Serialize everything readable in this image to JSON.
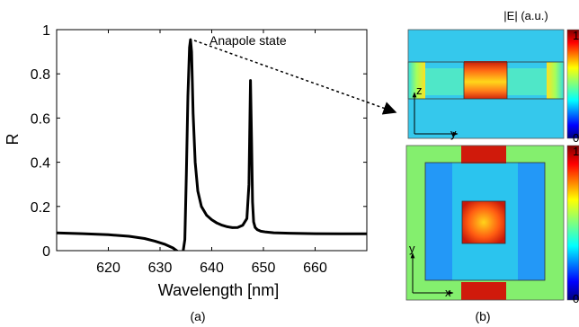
{
  "figure": {
    "panel_a_label": "(a)",
    "panel_b_label": "(b)"
  },
  "chart_data": {
    "type": "line",
    "xlabel": "Wavelength [nm]",
    "ylabel": "R",
    "xlim": [
      610,
      670
    ],
    "ylim": [
      0,
      1
    ],
    "xticks": [
      620,
      630,
      640,
      650,
      660
    ],
    "yticks": [
      0,
      0.2,
      0.4,
      0.6,
      0.8,
      1
    ],
    "ytick_labels": [
      "0",
      "0.2",
      "0.4",
      "0.6",
      "0.8",
      "1"
    ],
    "grid": false,
    "annotation": "Anapole state",
    "annotation_at": [
      635.9,
      0.955
    ],
    "series": [
      {
        "color": "#000000",
        "x": [
          610,
          615,
          620,
          624,
          627,
          629,
          631,
          632.5,
          633.5,
          634.3,
          634.8,
          635.1,
          635.4,
          635.7,
          635.9,
          636.1,
          636.4,
          636.8,
          637.3,
          638,
          639,
          640,
          641,
          642,
          643,
          644,
          645,
          646,
          646.8,
          647.2,
          647.5,
          647.7,
          647.9,
          648.1,
          648.4,
          648.8,
          649.5,
          650.5,
          652,
          655,
          660,
          665,
          670
        ],
        "y": [
          0.08,
          0.077,
          0.072,
          0.065,
          0.055,
          0.043,
          0.028,
          0.012,
          -0.005,
          -0.03,
          0.05,
          0.35,
          0.7,
          0.92,
          0.955,
          0.9,
          0.62,
          0.4,
          0.27,
          0.2,
          0.16,
          0.14,
          0.125,
          0.115,
          0.108,
          0.104,
          0.105,
          0.115,
          0.145,
          0.3,
          0.77,
          0.5,
          0.22,
          0.13,
          0.105,
          0.095,
          0.088,
          0.084,
          0.081,
          0.079,
          0.077,
          0.076,
          0.076
        ]
      }
    ]
  },
  "field_maps": {
    "colorbar_title": "|E| (a.u.)",
    "top": {
      "colorbar_max": "1",
      "colorbar_min": "0",
      "axis_vertical": "z",
      "axis_horizontal": "y"
    },
    "bottom": {
      "colorbar_max": "1",
      "colorbar_min": "0",
      "axis_vertical": "y",
      "axis_horizontal": "x"
    }
  }
}
